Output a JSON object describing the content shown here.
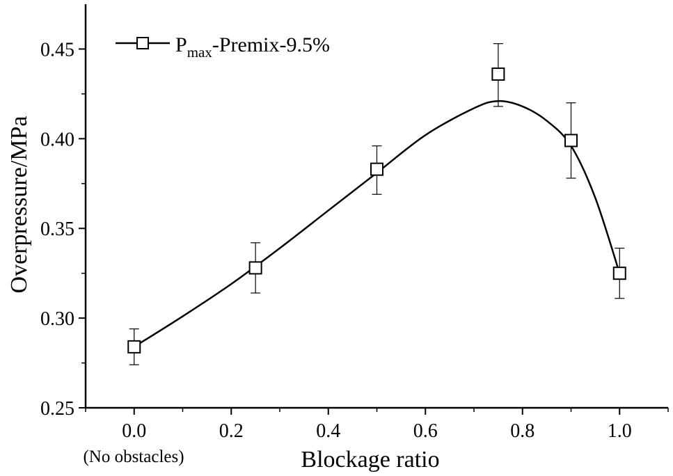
{
  "chart_data": {
    "type": "line",
    "xlabel": "Blockage ratio",
    "ylabel": "Overpressure/MPa",
    "x_note": "(No obstacles)",
    "xlim": [
      -0.1,
      1.1
    ],
    "ylim": [
      0.25,
      0.475
    ],
    "x_ticks": [
      "0.0",
      "0.2",
      "0.4",
      "0.6",
      "0.8",
      "1.0"
    ],
    "y_ticks": [
      "0.25",
      "0.30",
      "0.35",
      "0.40",
      "0.45"
    ],
    "grid": false,
    "legend_position": "top-left",
    "series": [
      {
        "legend": {
          "main": "P",
          "sub": "max",
          "rest": "-Premix-9.5%"
        },
        "marker": "open-square",
        "color": "#000000",
        "points": [
          {
            "x": 0.0,
            "y": 0.284,
            "err_low": 0.274,
            "err_high": 0.294
          },
          {
            "x": 0.25,
            "y": 0.328,
            "err_low": 0.314,
            "err_high": 0.342
          },
          {
            "x": 0.5,
            "y": 0.383,
            "err_low": 0.369,
            "err_high": 0.396
          },
          {
            "x": 0.75,
            "y": 0.436,
            "err_low": 0.418,
            "err_high": 0.453
          },
          {
            "x": 0.9,
            "y": 0.399,
            "err_low": 0.378,
            "err_high": 0.42
          },
          {
            "x": 1.0,
            "y": 0.325,
            "err_low": 0.311,
            "err_high": 0.339
          }
        ],
        "fit_curve": [
          {
            "x": 0.0,
            "y": 0.284
          },
          {
            "x": 0.1,
            "y": 0.301
          },
          {
            "x": 0.2,
            "y": 0.319
          },
          {
            "x": 0.3,
            "y": 0.339
          },
          {
            "x": 0.4,
            "y": 0.36
          },
          {
            "x": 0.5,
            "y": 0.381
          },
          {
            "x": 0.6,
            "y": 0.402
          },
          {
            "x": 0.7,
            "y": 0.417
          },
          {
            "x": 0.75,
            "y": 0.421
          },
          {
            "x": 0.8,
            "y": 0.418
          },
          {
            "x": 0.85,
            "y": 0.41
          },
          {
            "x": 0.9,
            "y": 0.396
          },
          {
            "x": 0.95,
            "y": 0.367
          },
          {
            "x": 1.0,
            "y": 0.325
          }
        ]
      }
    ]
  }
}
